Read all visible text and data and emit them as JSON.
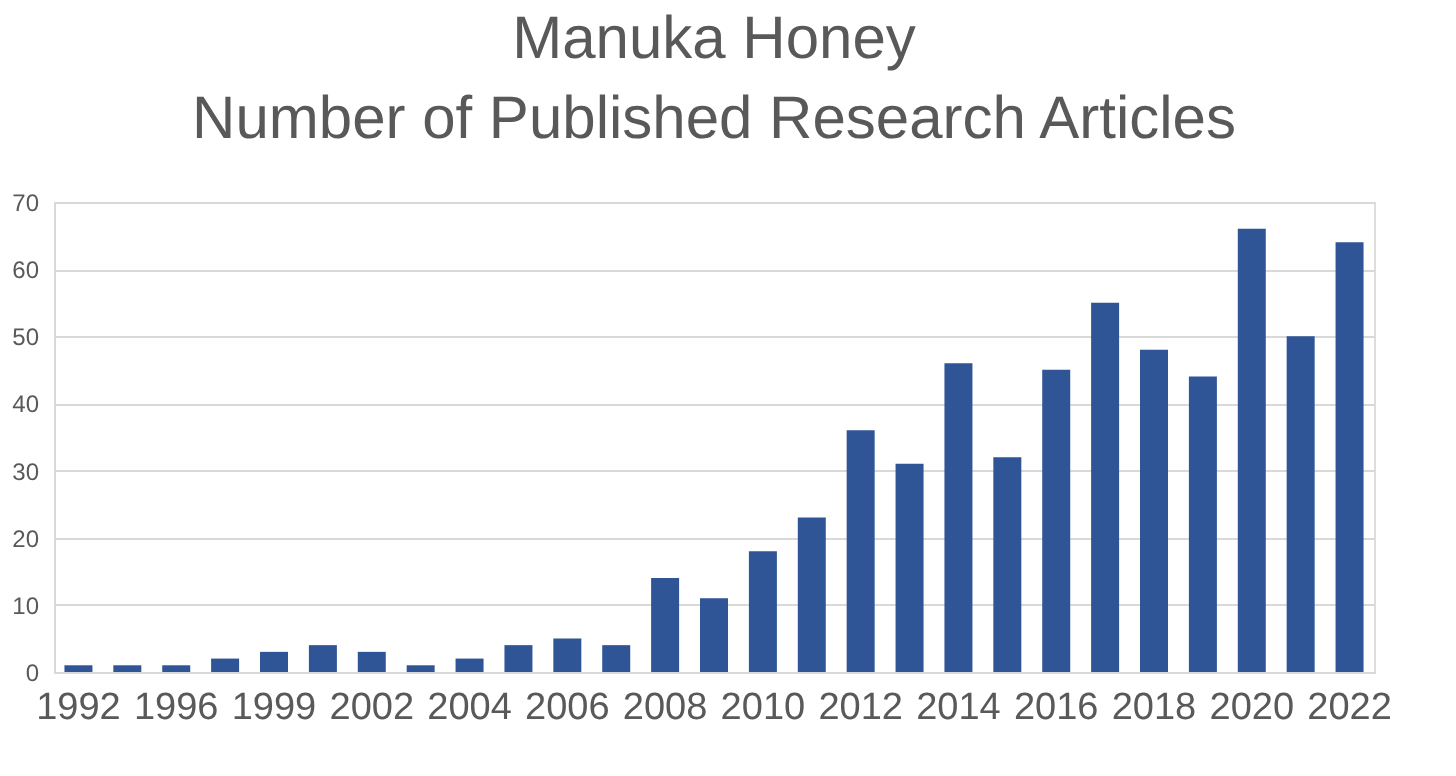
{
  "chart_data": {
    "type": "bar",
    "title": [
      "Manuka Honey",
      "Number of Published Research Articles"
    ],
    "categories": [
      "1992",
      null,
      "1996",
      null,
      "1999",
      null,
      "2002",
      null,
      "2004",
      null,
      "2006",
      null,
      "2008",
      null,
      "2010",
      null,
      "2012",
      null,
      "2014",
      null,
      "2016",
      null,
      "2018",
      null,
      "2020",
      null,
      "2022"
    ],
    "values": [
      1,
      1,
      1,
      2,
      3,
      4,
      3,
      1,
      2,
      4,
      5,
      4,
      14,
      11,
      18,
      23,
      36,
      31,
      46,
      32,
      45,
      55,
      48,
      44,
      66,
      50,
      64
    ],
    "color": "#2f5597",
    "ylim": [
      0,
      70
    ],
    "yticks": [
      0,
      10,
      20,
      30,
      40,
      50,
      60,
      70
    ],
    "grid": "y"
  }
}
